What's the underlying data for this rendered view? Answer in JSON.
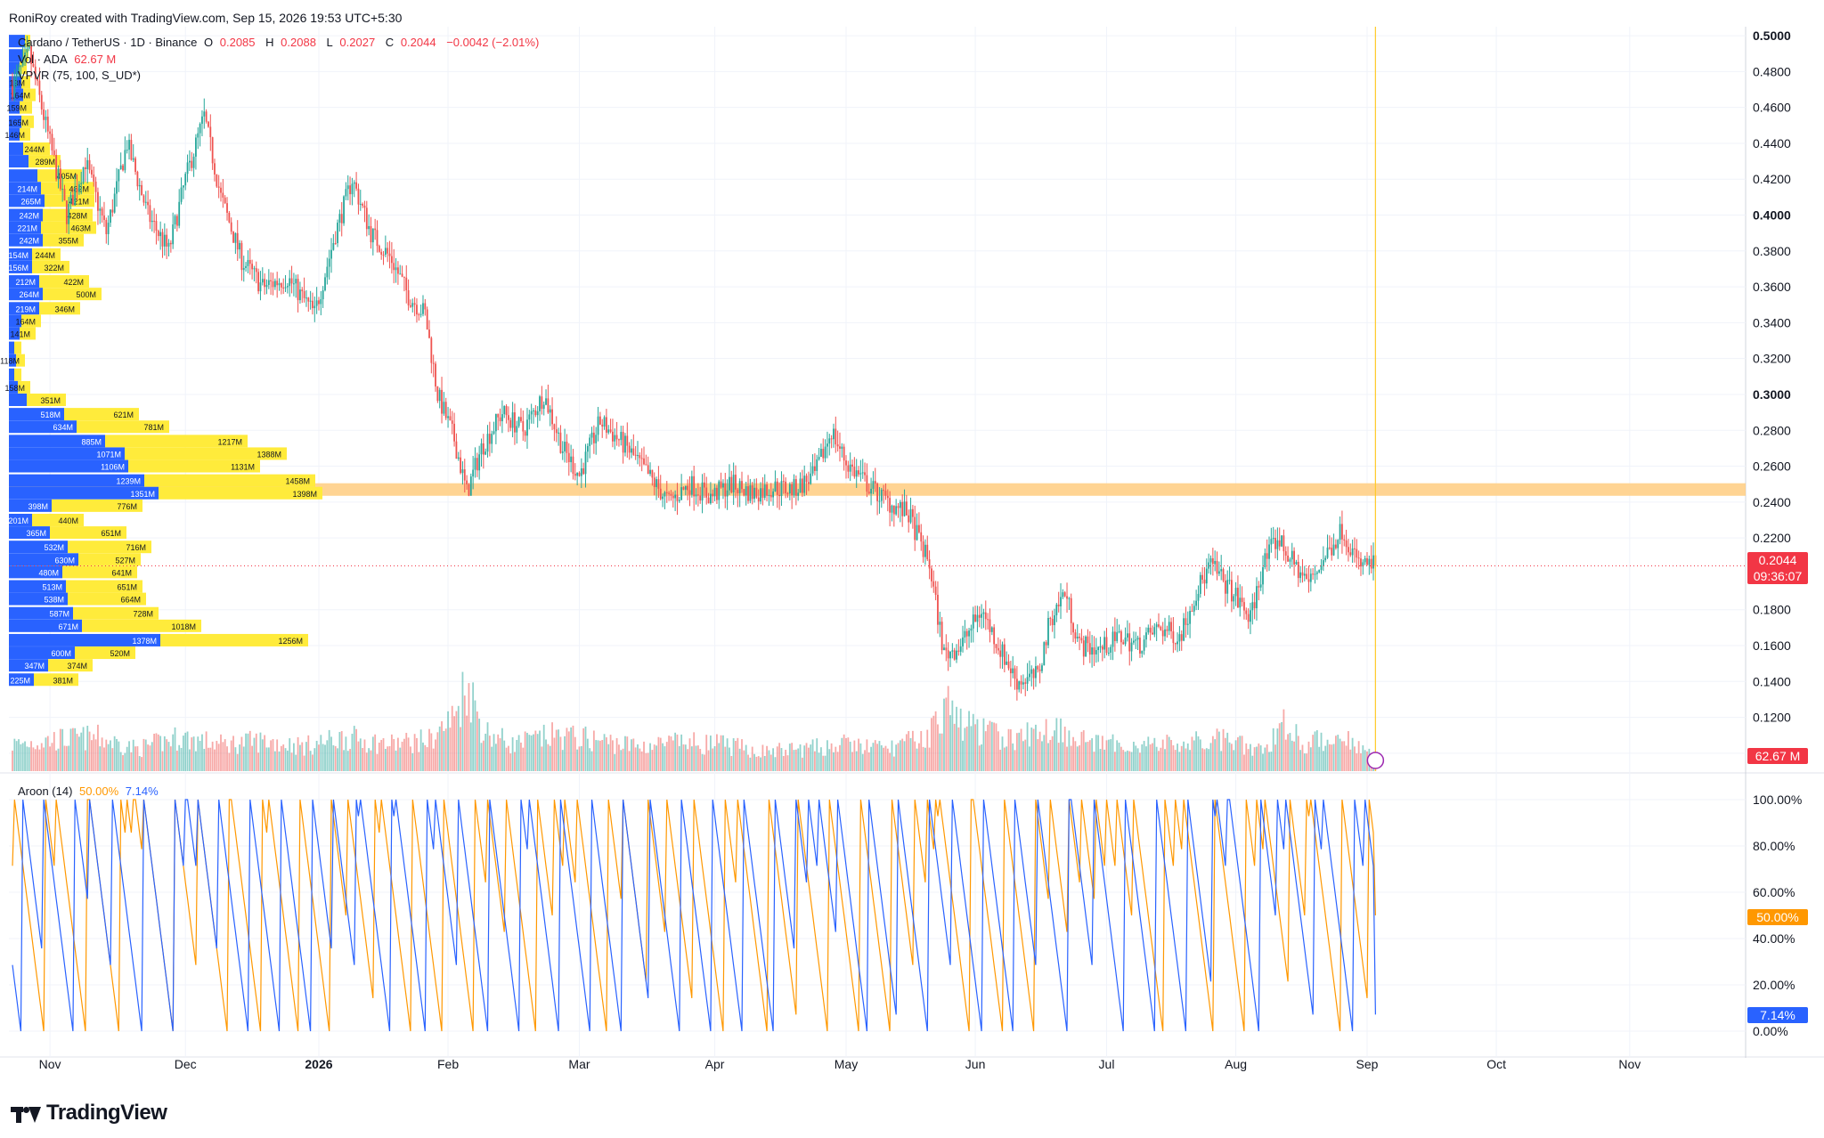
{
  "header": {
    "credit": "RoniRoy created with TradingView.com, Sep 15, 2026 19:53 UTC+5:30"
  },
  "legend": {
    "symbol": "Cardano / TetherUS · 1D · Binance",
    "o_label": "O",
    "o": "0.2085",
    "h_label": "H",
    "h": "0.2088",
    "l_label": "L",
    "l": "0.2027",
    "c_label": "C",
    "c": "0.2044",
    "change": "−0.0042 (−2.01%)",
    "vol_label": "Vol · ADA",
    "vol": "62.67 M",
    "vpvr": "VPVR (75, 100, S_UD*)",
    "aroon_label": "Aroon (14)",
    "aroon_up": "50.00%",
    "aroon_down": "7.14%"
  },
  "price_tag": {
    "value": "0.2044",
    "countdown": "09:36:07"
  },
  "volume_tag": "62.67 M",
  "aroon_tags": {
    "up": "50.00%",
    "down": "7.14%"
  },
  "brand": "TradingView",
  "colors": {
    "up": "#26a69a",
    "down": "#ef5350",
    "vpvr_up": "#2962ff",
    "vpvr_down": "#ffeb3b",
    "zone": "#ffcc80",
    "aroon_up": "#ff9800",
    "aroon_down": "#2962ff"
  },
  "chart_data": {
    "type": "candlestick",
    "price_axis": {
      "min": 0.09,
      "max": 0.505,
      "ticks": [
        "0.5000",
        "0.4800",
        "0.4600",
        "0.4400",
        "0.4200",
        "0.4000",
        "0.3800",
        "0.3600",
        "0.3400",
        "0.3200",
        "0.3000",
        "0.2800",
        "0.2600",
        "0.2400",
        "0.2200",
        "0.1800",
        "0.1600",
        "0.1400",
        "0.1200",
        "0.1000"
      ],
      "bold_ticks": [
        "0.5000",
        "0.4000",
        "0.3000"
      ]
    },
    "time_axis": {
      "labels": [
        "Nov",
        "Dec",
        "2026",
        "Feb",
        "Mar",
        "Apr",
        "May",
        "Jun",
        "Jul",
        "Aug",
        "Sep",
        "Oct",
        "Nov"
      ],
      "label_day": [
        18,
        83,
        147,
        209,
        272,
        337,
        400,
        462,
        525,
        587,
        650,
        712,
        776
      ]
    },
    "support_zone": [
      0.2435,
      0.2505
    ],
    "current_price": 0.2044,
    "price_path": [
      [
        0,
        0.472
      ],
      [
        8,
        0.49
      ],
      [
        18,
        0.44
      ],
      [
        26,
        0.4
      ],
      [
        35,
        0.43
      ],
      [
        45,
        0.39
      ],
      [
        55,
        0.44
      ],
      [
        65,
        0.4
      ],
      [
        75,
        0.38
      ],
      [
        83,
        0.42
      ],
      [
        92,
        0.455
      ],
      [
        100,
        0.41
      ],
      [
        110,
        0.375
      ],
      [
        120,
        0.36
      ],
      [
        132,
        0.365
      ],
      [
        145,
        0.345
      ],
      [
        155,
        0.39
      ],
      [
        163,
        0.42
      ],
      [
        172,
        0.39
      ],
      [
        182,
        0.375
      ],
      [
        190,
        0.355
      ],
      [
        198,
        0.345
      ],
      [
        204,
        0.3
      ],
      [
        212,
        0.275
      ],
      [
        218,
        0.245
      ],
      [
        225,
        0.27
      ],
      [
        235,
        0.29
      ],
      [
        245,
        0.28
      ],
      [
        255,
        0.3
      ],
      [
        264,
        0.27
      ],
      [
        272,
        0.255
      ],
      [
        282,
        0.285
      ],
      [
        295,
        0.27
      ],
      [
        305,
        0.255
      ],
      [
        315,
        0.24
      ],
      [
        325,
        0.25
      ],
      [
        335,
        0.243
      ],
      [
        345,
        0.25
      ],
      [
        355,
        0.245
      ],
      [
        365,
        0.248
      ],
      [
        375,
        0.247
      ],
      [
        385,
        0.255
      ],
      [
        393,
        0.28
      ],
      [
        400,
        0.262
      ],
      [
        410,
        0.25
      ],
      [
        420,
        0.24
      ],
      [
        430,
        0.233
      ],
      [
        440,
        0.205
      ],
      [
        447,
        0.155
      ],
      [
        455,
        0.16
      ],
      [
        465,
        0.18
      ],
      [
        473,
        0.16
      ],
      [
        482,
        0.14
      ],
      [
        492,
        0.143
      ],
      [
        498,
        0.175
      ],
      [
        505,
        0.19
      ],
      [
        512,
        0.16
      ],
      [
        522,
        0.158
      ],
      [
        532,
        0.165
      ],
      [
        540,
        0.16
      ],
      [
        550,
        0.17
      ],
      [
        560,
        0.165
      ],
      [
        568,
        0.19
      ],
      [
        575,
        0.205
      ],
      [
        585,
        0.19
      ],
      [
        594,
        0.175
      ],
      [
        600,
        0.205
      ],
      [
        607,
        0.22
      ],
      [
        615,
        0.205
      ],
      [
        622,
        0.195
      ],
      [
        630,
        0.21
      ],
      [
        638,
        0.225
      ],
      [
        646,
        0.205
      ],
      [
        654,
        0.205
      ]
    ],
    "volume_path": [
      [
        0,
        30
      ],
      [
        20,
        35
      ],
      [
        40,
        38
      ],
      [
        60,
        25
      ],
      [
        80,
        38
      ],
      [
        100,
        30
      ],
      [
        120,
        34
      ],
      [
        140,
        28
      ],
      [
        160,
        38
      ],
      [
        180,
        30
      ],
      [
        200,
        35
      ],
      [
        212,
        60
      ],
      [
        218,
        100
      ],
      [
        226,
        45
      ],
      [
        240,
        30
      ],
      [
        260,
        40
      ],
      [
        280,
        35
      ],
      [
        300,
        28
      ],
      [
        320,
        32
      ],
      [
        340,
        30
      ],
      [
        360,
        22
      ],
      [
        380,
        25
      ],
      [
        400,
        30
      ],
      [
        420,
        25
      ],
      [
        440,
        40
      ],
      [
        447,
        75
      ],
      [
        455,
        55
      ],
      [
        465,
        45
      ],
      [
        480,
        35
      ],
      [
        500,
        50
      ],
      [
        520,
        30
      ],
      [
        540,
        30
      ],
      [
        560,
        30
      ],
      [
        580,
        35
      ],
      [
        600,
        22
      ],
      [
        610,
        55
      ],
      [
        620,
        30
      ],
      [
        640,
        40
      ],
      [
        654,
        14
      ]
    ],
    "vpvr_profile": [
      {
        "price": 0.497,
        "up": "",
        "down": "",
        "bu": 18,
        "bd": 6
      },
      {
        "price": 0.489,
        "up": "",
        "down": "",
        "bu": 16,
        "bd": 6
      },
      {
        "price": 0.482,
        "up": "",
        "down": "",
        "bu": 12,
        "bd": 8
      },
      {
        "price": 0.474,
        "up": "",
        "down": "13M",
        "bu": 14,
        "bd": 10
      },
      {
        "price": 0.467,
        "up": "",
        "down": "164M",
        "bu": 16,
        "bd": 14
      },
      {
        "price": 0.46,
        "up": "",
        "down": "159M",
        "bu": 12,
        "bd": 14
      },
      {
        "price": 0.452,
        "up": "",
        "down": "165M",
        "bu": 14,
        "bd": 14
      },
      {
        "price": 0.445,
        "up": "",
        "down": "146M",
        "bu": 12,
        "bd": 12
      },
      {
        "price": 0.437,
        "up": "",
        "down": "244M",
        "bu": 16,
        "bd": 30
      },
      {
        "price": 0.43,
        "up": "",
        "down": "289M",
        "bu": 22,
        "bd": 36
      },
      {
        "price": 0.422,
        "up": "",
        "down": "405M",
        "bu": 32,
        "bd": 50
      },
      {
        "price": 0.415,
        "up": "214M",
        "down": "482M",
        "bu": 36,
        "bd": 60
      },
      {
        "price": 0.408,
        "up": "265M",
        "down": "421M",
        "bu": 40,
        "bd": 56
      },
      {
        "price": 0.4,
        "up": "242M",
        "down": "428M",
        "bu": 38,
        "bd": 56
      },
      {
        "price": 0.393,
        "up": "221M",
        "down": "463M",
        "bu": 36,
        "bd": 62
      },
      {
        "price": 0.386,
        "up": "242M",
        "down": "355M",
        "bu": 38,
        "bd": 46
      },
      {
        "price": 0.378,
        "up": "154M",
        "down": "244M",
        "bu": 26,
        "bd": 32
      },
      {
        "price": 0.371,
        "up": "156M",
        "down": "322M",
        "bu": 26,
        "bd": 42
      },
      {
        "price": 0.363,
        "up": "212M",
        "down": "422M",
        "bu": 34,
        "bd": 56
      },
      {
        "price": 0.356,
        "up": "264M",
        "down": "500M",
        "bu": 38,
        "bd": 66
      },
      {
        "price": 0.348,
        "up": "219M",
        "down": "346M",
        "bu": 34,
        "bd": 46
      },
      {
        "price": 0.341,
        "up": "",
        "down": "164M",
        "bu": 14,
        "bd": 22
      },
      {
        "price": 0.334,
        "up": "",
        "down": "141M",
        "bu": 12,
        "bd": 18
      },
      {
        "price": 0.326,
        "up": "",
        "down": "",
        "bu": 6,
        "bd": 8
      },
      {
        "price": 0.319,
        "up": "",
        "down": "118M",
        "bu": 8,
        "bd": 10
      },
      {
        "price": 0.311,
        "up": "",
        "down": "",
        "bu": 6,
        "bd": 8
      },
      {
        "price": 0.304,
        "up": "",
        "down": "158M",
        "bu": 10,
        "bd": 14
      },
      {
        "price": 0.297,
        "up": "",
        "down": "351M",
        "bu": 20,
        "bd": 44
      },
      {
        "price": 0.289,
        "up": "518M",
        "down": "621M",
        "bu": 62,
        "bd": 84
      },
      {
        "price": 0.282,
        "up": "634M",
        "down": "781M",
        "bu": 76,
        "bd": 104
      },
      {
        "price": 0.274,
        "up": "885M",
        "down": "1217M",
        "bu": 108,
        "bd": 160
      },
      {
        "price": 0.267,
        "up": "1071M",
        "down": "1388M",
        "bu": 130,
        "bd": 182
      },
      {
        "price": 0.26,
        "up": "1106M",
        "down": "1131M",
        "bu": 134,
        "bd": 148
      },
      {
        "price": 0.252,
        "up": "1239M",
        "down": "1458M",
        "bu": 152,
        "bd": 192
      },
      {
        "price": 0.245,
        "up": "1351M",
        "down": "1398M",
        "bu": 168,
        "bd": 184
      },
      {
        "price": 0.238,
        "up": "398M",
        "down": "776M",
        "bu": 48,
        "bd": 102
      },
      {
        "price": 0.23,
        "up": "201M",
        "down": "440M",
        "bu": 26,
        "bd": 58
      },
      {
        "price": 0.223,
        "up": "365M",
        "down": "651M",
        "bu": 46,
        "bd": 86
      },
      {
        "price": 0.215,
        "up": "532M",
        "down": "716M",
        "bu": 66,
        "bd": 94
      },
      {
        "price": 0.208,
        "up": "630M",
        "down": "527M",
        "bu": 78,
        "bd": 70
      },
      {
        "price": 0.201,
        "up": "480M",
        "down": "641M",
        "bu": 60,
        "bd": 84
      },
      {
        "price": 0.193,
        "up": "513M",
        "down": "651M",
        "bu": 64,
        "bd": 86
      },
      {
        "price": 0.186,
        "up": "538M",
        "down": "664M",
        "bu": 66,
        "bd": 88
      },
      {
        "price": 0.178,
        "up": "587M",
        "down": "728M",
        "bu": 72,
        "bd": 96
      },
      {
        "price": 0.171,
        "up": "671M",
        "down": "1018M",
        "bu": 82,
        "bd": 134
      },
      {
        "price": 0.163,
        "up": "1378M",
        "down": "1256M",
        "bu": 170,
        "bd": 166
      },
      {
        "price": 0.156,
        "up": "600M",
        "down": "520M",
        "bu": 74,
        "bd": 68
      },
      {
        "price": 0.149,
        "up": "347M",
        "down": "374M",
        "bu": 44,
        "bd": 50
      },
      {
        "price": 0.141,
        "up": "225M",
        "down": "381M",
        "bu": 28,
        "bd": 50
      }
    ],
    "aroon_axis": {
      "min": 0,
      "max": 100,
      "ticks": [
        "100.00%",
        "80.00%",
        "60.00%",
        "40.00%",
        "20.00%",
        "0.00%"
      ]
    },
    "aroon_up_last": 50.0,
    "aroon_down_last": 7.14
  }
}
